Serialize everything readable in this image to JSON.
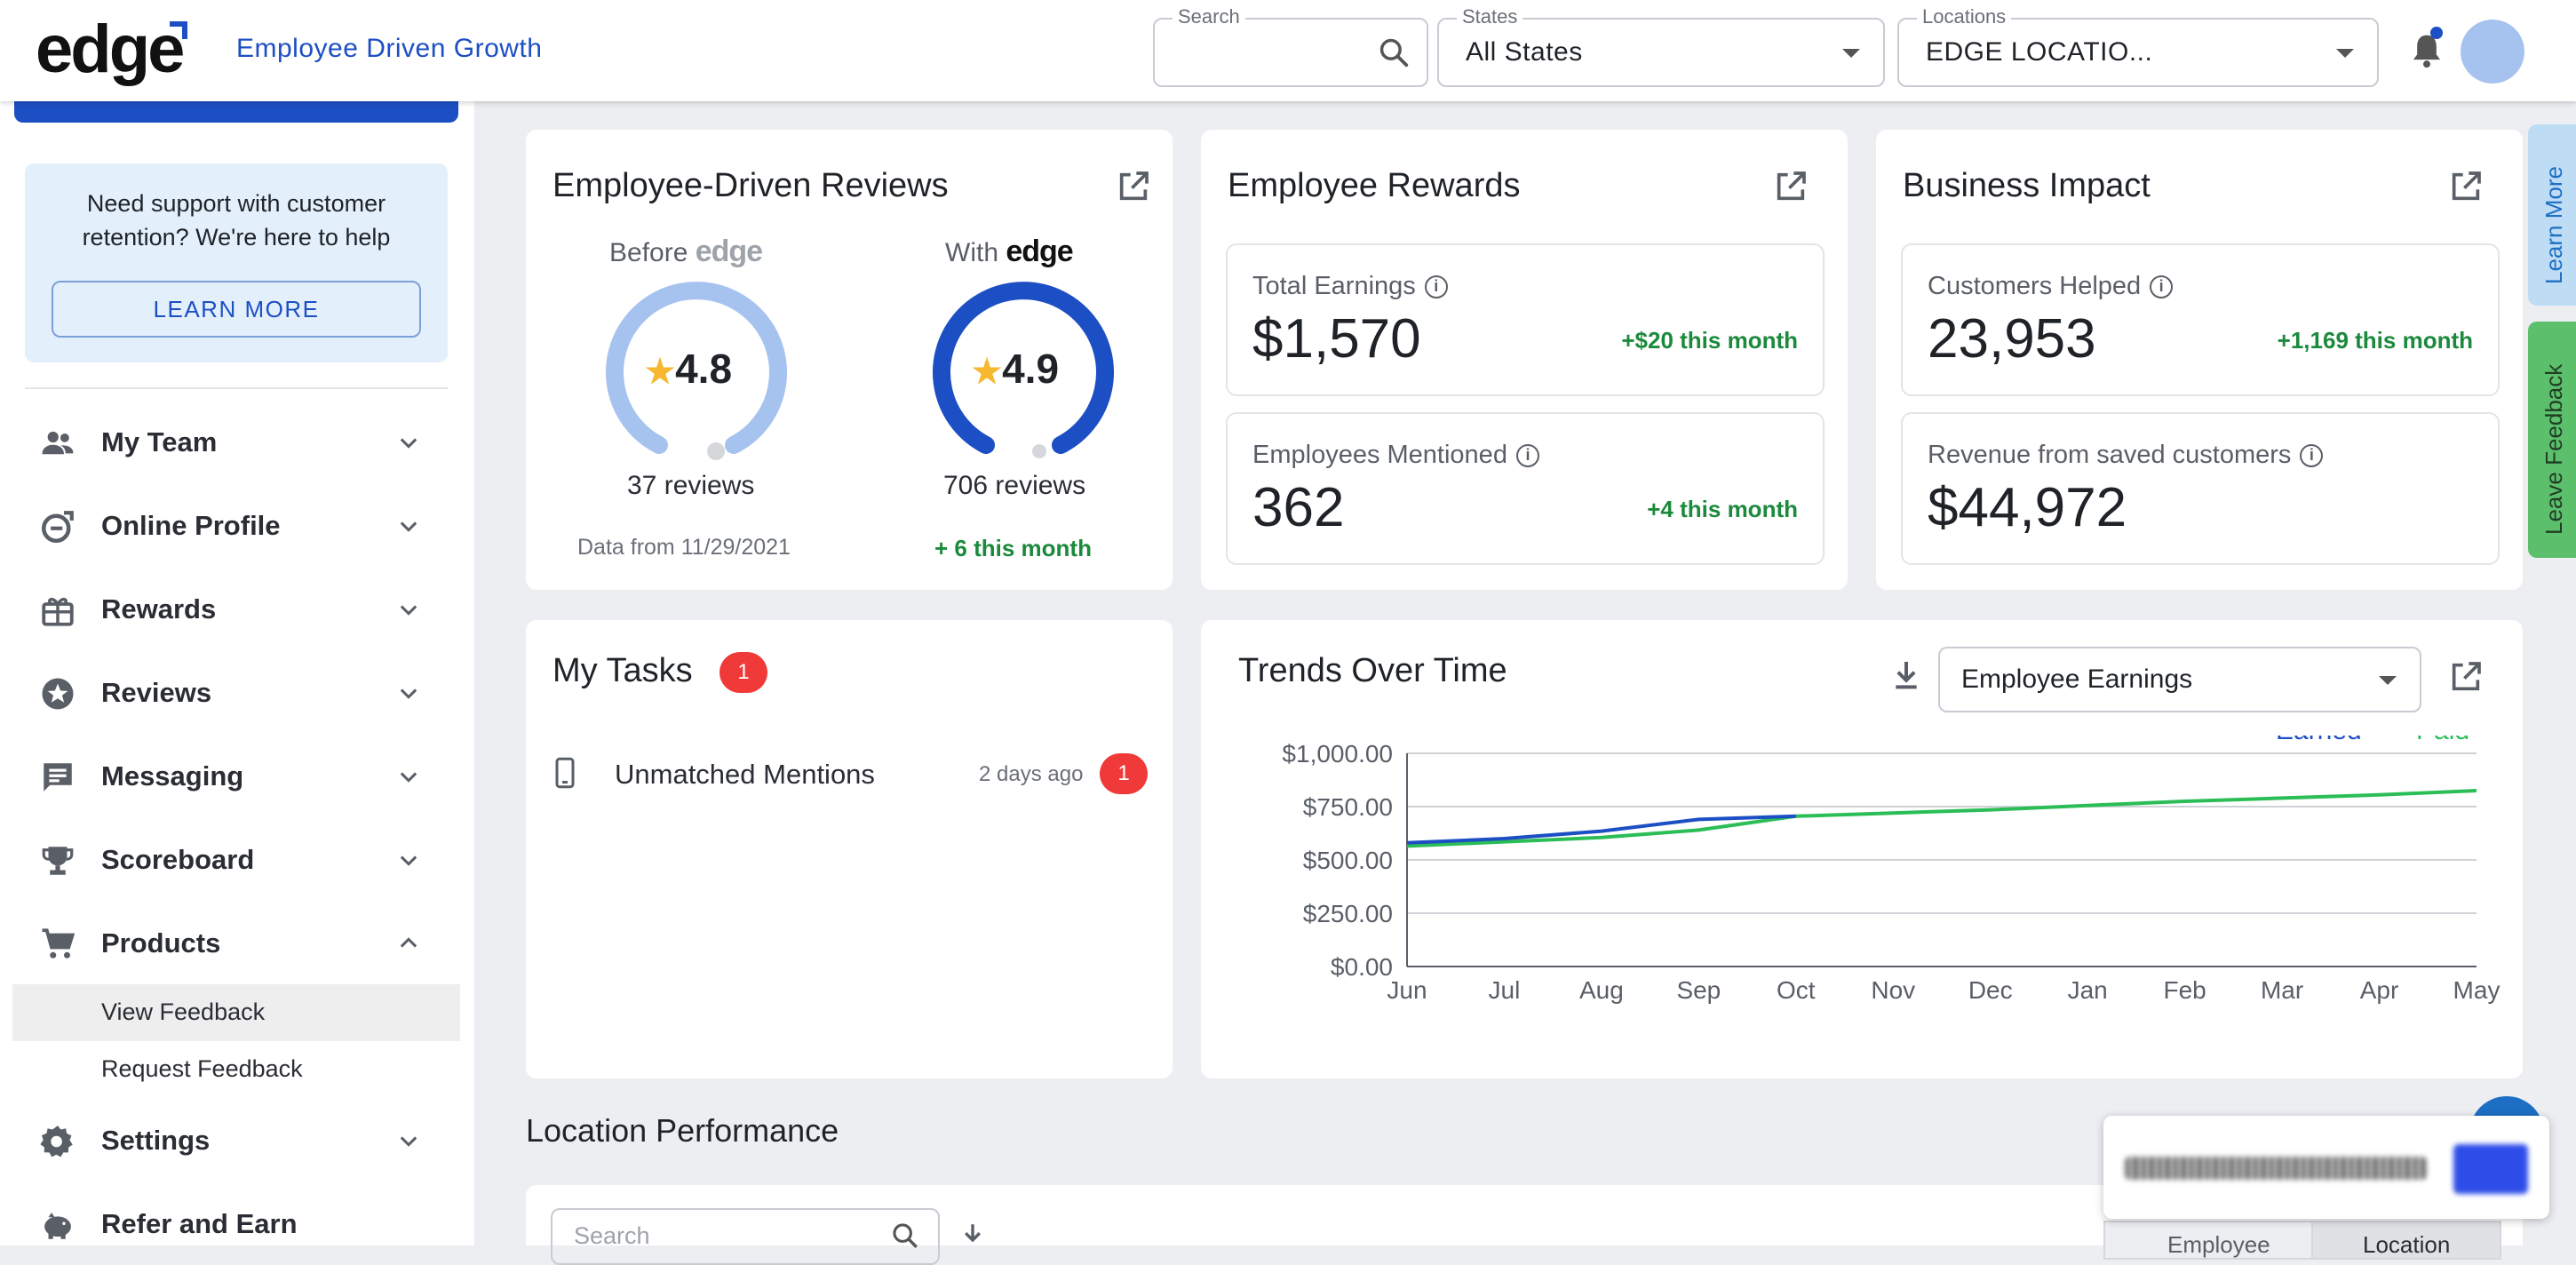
{
  "header": {
    "logo_text": "edge",
    "tagline": "Employee Driven Growth",
    "search_label": "Search",
    "states_label": "States",
    "states_value": "All States",
    "locations_label": "Locations",
    "locations_value": "EDGE LOCATIO..."
  },
  "sidebar": {
    "support_text": "Need support with customer retention? We're here to help",
    "learn_more": "LEARN MORE",
    "items": [
      {
        "label": "My Team",
        "icon": "team-icon",
        "expanded": false
      },
      {
        "label": "Online Profile",
        "icon": "online-profile-icon",
        "expanded": false
      },
      {
        "label": "Rewards",
        "icon": "gift-icon",
        "expanded": false
      },
      {
        "label": "Reviews",
        "icon": "star-badge-icon",
        "expanded": false
      },
      {
        "label": "Messaging",
        "icon": "message-icon",
        "expanded": false
      },
      {
        "label": "Scoreboard",
        "icon": "trophy-icon",
        "expanded": false
      },
      {
        "label": "Products",
        "icon": "cart-icon",
        "expanded": true
      },
      {
        "label": "Settings",
        "icon": "gear-icon",
        "expanded": false
      },
      {
        "label": "Refer and Earn",
        "icon": "piggy-bank-icon",
        "expanded": false
      }
    ],
    "sub_items": [
      "View Feedback",
      "Request Feedback"
    ]
  },
  "reviews_card": {
    "title": "Employee-Driven Reviews",
    "before_label": "Before",
    "with_label": "With",
    "brand": "edge",
    "before_rating": "4.8",
    "before_reviews": "37 reviews",
    "before_note": "Data from 11/29/2021",
    "with_rating": "4.9",
    "with_reviews": "706 reviews",
    "with_note": "+ 6 this month",
    "colors": {
      "before": "#a6c3ef",
      "with": "#1d4fc4",
      "star": "#f5b82e"
    }
  },
  "rewards_card": {
    "title": "Employee Rewards",
    "total_earnings_label": "Total Earnings",
    "total_earnings_value": "$1,570",
    "total_earnings_delta": "+$20 this month",
    "employees_mentioned_label": "Employees Mentioned",
    "employees_mentioned_value": "362",
    "employees_mentioned_delta": "+4 this month"
  },
  "impact_card": {
    "title": "Business Impact",
    "customers_helped_label": "Customers Helped",
    "customers_helped_value": "23,953",
    "customers_helped_delta": "+1,169 this month",
    "revenue_label": "Revenue from saved customers",
    "revenue_value": "$44,972"
  },
  "tasks_card": {
    "title": "My Tasks",
    "count": "1",
    "tasks": [
      {
        "label": "Unmatched Mentions",
        "time": "2 days ago",
        "count": "1"
      }
    ]
  },
  "trends_card": {
    "title": "Trends Over Time",
    "select_value": "Employee Earnings"
  },
  "chart_data": {
    "type": "line",
    "categories": [
      "Jun",
      "Jul",
      "Aug",
      "Sep",
      "Oct",
      "Nov",
      "Dec",
      "Jan",
      "Feb",
      "Mar",
      "Apr",
      "May"
    ],
    "series": [
      {
        "name": "Earned",
        "color": "#1d4fc4",
        "values": [
          580,
          600,
          635,
          690,
          705,
          null,
          null,
          null,
          null,
          null,
          null,
          null
        ]
      },
      {
        "name": "Paid",
        "color": "#2bbd56",
        "values": [
          565,
          585,
          605,
          640,
          705,
          720,
          735,
          755,
          775,
          790,
          805,
          825
        ]
      }
    ],
    "y_ticks": [
      "$0.00",
      "$250.00",
      "$500.00",
      "$750.00",
      "$1,000.00"
    ],
    "ylim": [
      0,
      1000
    ],
    "legend": "top-right",
    "grid": true
  },
  "location_performance": {
    "title": "Location Performance",
    "search_placeholder": "Search",
    "toggle_employee": "Employee",
    "toggle_location": "Location"
  },
  "side_tabs": {
    "learn_more": "Learn More",
    "leave_feedback": "Leave Feedback"
  }
}
